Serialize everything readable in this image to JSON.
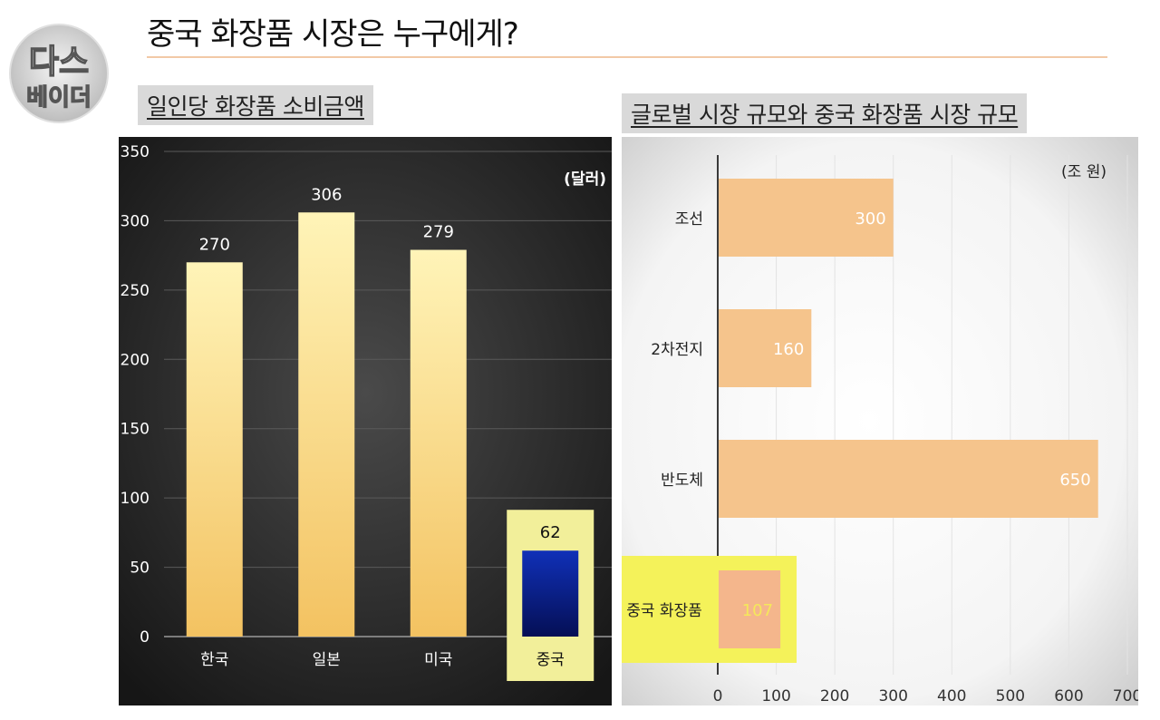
{
  "logo": {
    "text_top": "다스",
    "text_bottom": "베이더"
  },
  "title": "중국 화장품 시장은 누구에게?",
  "left_label": "일인당 화장품 소비금액",
  "right_label": "글로벌 시장 규모와 중국 화장품 시장 규모",
  "colors": {
    "bar_gold": "#f7d37a",
    "bar_blue": "#0a1e8a",
    "highlight": "#f2ef9a",
    "hbar": "#f5c48c",
    "hbar_highlight": "#f4b68c",
    "yellow_box": "#f4f25a"
  },
  "chart_data": [
    {
      "type": "bar",
      "unit": "(달러)",
      "categories": [
        "한국",
        "일본",
        "미국",
        "중국"
      ],
      "values": [
        270,
        306,
        279,
        62
      ],
      "highlight": "중국",
      "ylim": [
        0,
        350
      ],
      "yticks": [
        0,
        50,
        100,
        150,
        200,
        250,
        300,
        350
      ],
      "grid": true
    },
    {
      "type": "bar",
      "orientation": "horizontal",
      "unit": "(조 원)",
      "categories": [
        "조선",
        "2차전지",
        "반도체",
        "중국 화장품"
      ],
      "values": [
        300,
        160,
        650,
        107
      ],
      "highlight": "중국 화장품",
      "xlim": [
        0,
        700
      ],
      "xticks": [
        0,
        100,
        200,
        300,
        400,
        500,
        600,
        700
      ],
      "grid": true
    }
  ]
}
